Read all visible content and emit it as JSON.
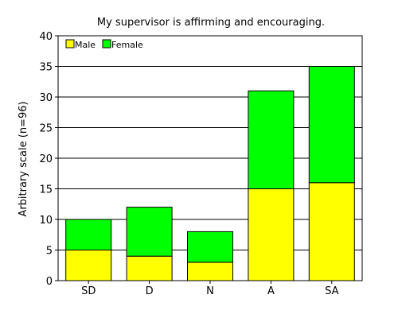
{
  "chart_data": {
    "type": "bar",
    "stacked": true,
    "title": "My supervisor is affirming and encouraging.",
    "xlabel": "",
    "ylabel": "Arbitrary scale (n=96)",
    "categories": [
      "SD",
      "D",
      "N",
      "A",
      "SA"
    ],
    "series": [
      {
        "name": "Male",
        "values": [
          5,
          4,
          3,
          15,
          16
        ],
        "color": "#ffff00"
      },
      {
        "name": "Female",
        "values": [
          5,
          8,
          5,
          16,
          19
        ],
        "color": "#00ff00"
      }
    ],
    "ylim": [
      0,
      40
    ],
    "yticks": [
      0,
      5,
      10,
      15,
      20,
      25,
      30,
      35,
      40
    ],
    "grid": true,
    "legend_position": "top-left"
  }
}
